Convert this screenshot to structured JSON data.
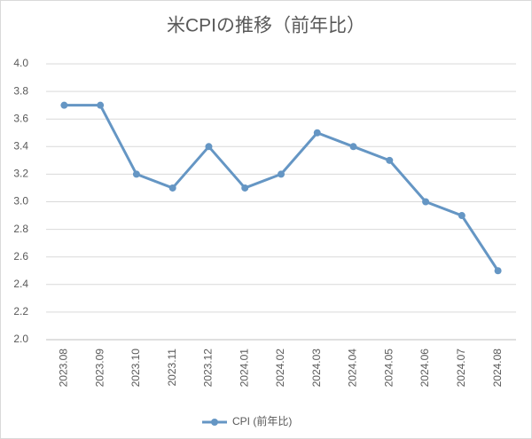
{
  "chart_data": {
    "type": "line",
    "title": "米CPIの推移（前年比）",
    "categories": [
      "2023.08",
      "2023.09",
      "2023.10",
      "2023.11",
      "2023.12",
      "2024.01",
      "2024.02",
      "2024.03",
      "2024.04",
      "2024.05",
      "2024.06",
      "2024.07",
      "2024.08"
    ],
    "series": [
      {
        "name": "CPI (前年比)",
        "color": "#6596c4",
        "values": [
          3.7,
          3.7,
          3.2,
          3.1,
          3.4,
          3.1,
          3.2,
          3.5,
          3.4,
          3.3,
          3.0,
          2.9,
          2.5
        ]
      }
    ],
    "ylim": [
      2,
      4
    ],
    "yticks": [
      {
        "value": 2,
        "label": "2.0"
      },
      2.2,
      2.4,
      2.6,
      2.8,
      {
        "value": 3,
        "label": "3.0"
      },
      3.2,
      3.4,
      3.6,
      3.8,
      {
        "value": 4,
        "label": "4.0"
      }
    ],
    "grid": true,
    "legend": "bottom"
  }
}
